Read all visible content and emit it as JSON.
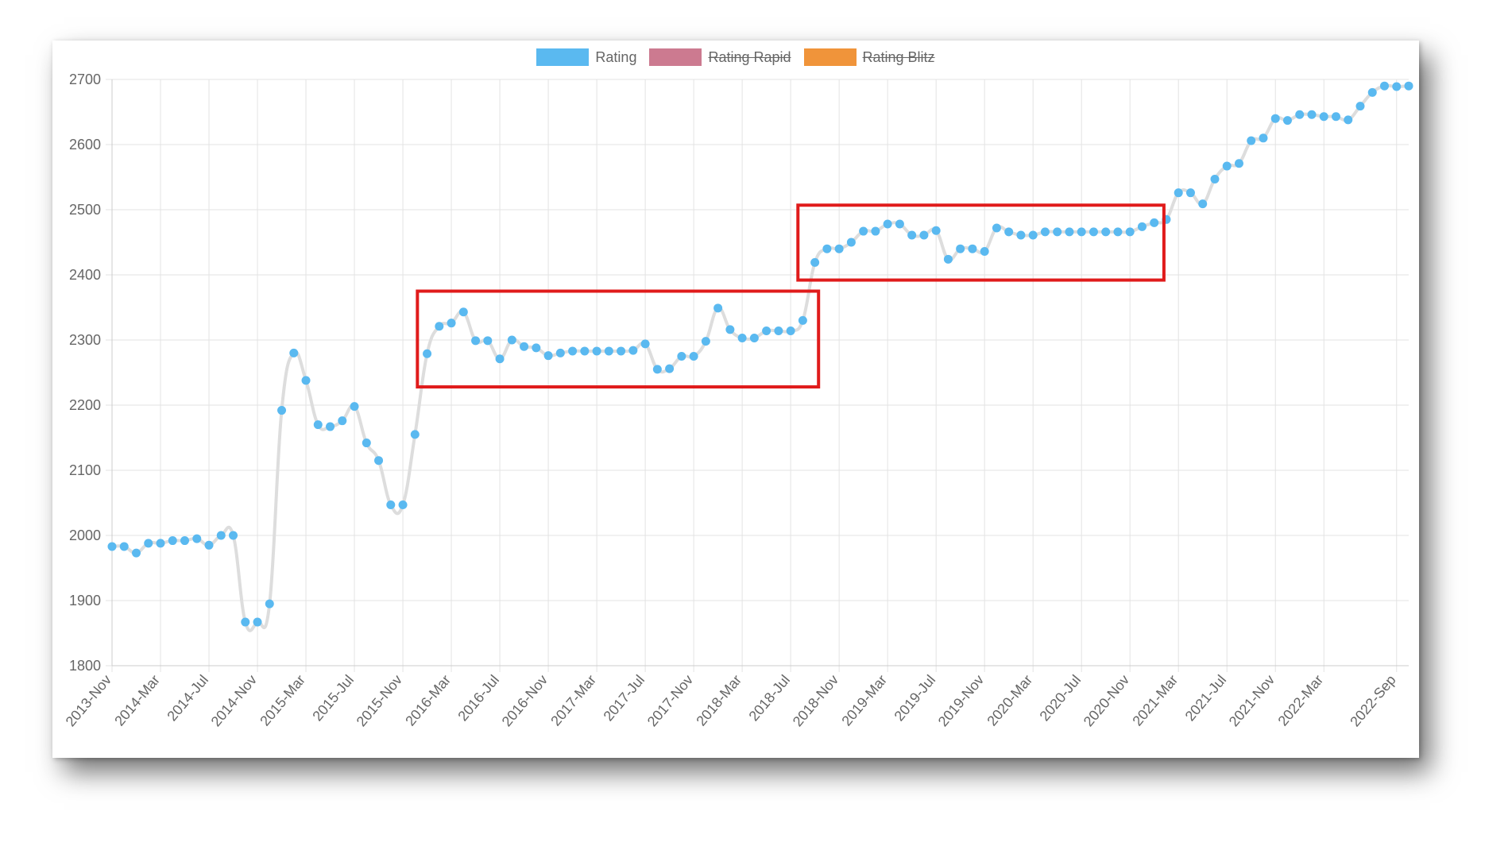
{
  "legend": {
    "items": [
      {
        "label": "Rating",
        "color": "#5ab9f0",
        "hidden": false
      },
      {
        "label": "Rating Rapid",
        "color": "#cc7a90",
        "hidden": true
      },
      {
        "label": "Rating Blitz",
        "color": "#f0943a",
        "hidden": true
      }
    ]
  },
  "chart_data": {
    "type": "line",
    "title": "",
    "xlabel": "",
    "ylabel": "",
    "grid": true,
    "legend_position": "top",
    "line_color": "#dddddd",
    "point_color": "#5ab9f0",
    "highlight_color": "#e01b1b",
    "ylim": [
      1800,
      2700
    ],
    "y_ticks": [
      1800,
      1900,
      2000,
      2100,
      2200,
      2300,
      2400,
      2500,
      2600,
      2700
    ],
    "x_ticks": [
      "2013-Nov",
      "2014-Mar",
      "2014-Jul",
      "2014-Nov",
      "2015-Mar",
      "2015-Jul",
      "2015-Nov",
      "2016-Mar",
      "2016-Jul",
      "2016-Nov",
      "2017-Mar",
      "2017-Jul",
      "2017-Nov",
      "2018-Mar",
      "2018-Jul",
      "2018-Nov",
      "2019-Mar",
      "2019-Jul",
      "2019-Nov",
      "2020-Mar",
      "2020-Jul",
      "2020-Nov",
      "2021-Mar",
      "2021-Jul",
      "2021-Nov",
      "2022-Mar",
      "2022-Sep"
    ],
    "x_tick_index": [
      0,
      4,
      8,
      12,
      16,
      20,
      24,
      28,
      32,
      36,
      40,
      44,
      48,
      52,
      56,
      60,
      64,
      68,
      72,
      76,
      80,
      84,
      88,
      92,
      96,
      100,
      106
    ],
    "series": [
      {
        "name": "Rating",
        "values": [
          1983,
          1983,
          1973,
          1988,
          1988,
          1992,
          1992,
          1995,
          1985,
          2000,
          2000,
          1867,
          1867,
          1895,
          2192,
          2280,
          2238,
          2170,
          2167,
          2176,
          2198,
          2142,
          2115,
          2047,
          2047,
          2155,
          2279,
          2321,
          2326,
          2343,
          2299,
          2299,
          2271,
          2300,
          2290,
          2288,
          2276,
          2280,
          2283,
          2283,
          2283,
          2283,
          2283,
          2284,
          2294,
          2255,
          2256,
          2275,
          2275,
          2298,
          2349,
          2316,
          2303,
          2303,
          2314,
          2314,
          2314,
          2330,
          2419,
          2440,
          2440,
          2450,
          2467,
          2467,
          2478,
          2478,
          2461,
          2461,
          2468,
          2424,
          2440,
          2440,
          2436,
          2472,
          2466,
          2461,
          2461,
          2466,
          2466,
          2466,
          2466,
          2466,
          2466,
          2466,
          2466,
          2474,
          2480,
          2485,
          2526,
          2526,
          2509,
          2547,
          2567,
          2571,
          2606,
          2610,
          2640,
          2637,
          2646,
          2646,
          2643,
          2643,
          2638,
          2659,
          2680,
          2690,
          2689,
          2690
        ]
      }
    ],
    "annotations": [
      {
        "type": "rectangle",
        "x_from": 25.2,
        "x_to": 58.3,
        "y_from": 2228,
        "y_to": 2375
      },
      {
        "type": "rectangle",
        "x_from": 56.6,
        "x_to": 86.8,
        "y_from": 2392,
        "y_to": 2507
      }
    ]
  }
}
